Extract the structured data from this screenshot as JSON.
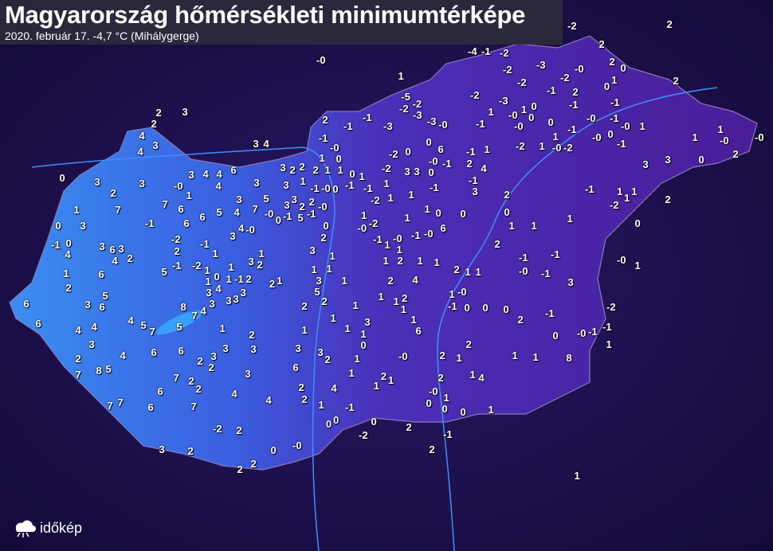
{
  "header": {
    "title": "Magyarország hőmérsékleti minimumtérképe",
    "subtitle": "2020. február 17.  -4,7 °C (Mihálygerge)"
  },
  "logo": {
    "text": "időkép",
    "icon": "cloud-sun-icon"
  },
  "colors": {
    "background": "#1c1050",
    "west": "#2f7de8",
    "east": "#5a20a8",
    "label": "#ffffff"
  },
  "map_labels": [
    "2",
    "-2",
    "-0",
    "-4",
    "-1",
    "-2",
    "2",
    "2",
    "0",
    "-2",
    "-3",
    "-0",
    "-2",
    "-2",
    "1",
    "0",
    "1",
    "2",
    "-2",
    "-1",
    "2",
    "-5",
    "-2",
    "-2",
    "-3",
    "-3",
    "-0",
    "-3",
    "-1",
    "-1",
    "0",
    "1",
    "1",
    "-0",
    "0",
    "-1",
    "-0",
    "0",
    "-0",
    "-1",
    "-0",
    "1",
    "0",
    "-1",
    "-0",
    "-1",
    "1",
    "1",
    "-0",
    "-2",
    "3",
    "2",
    "2",
    "2",
    "-1",
    "-1",
    "-3",
    "-1",
    "-0",
    "0",
    "0",
    "6",
    "0",
    "-2",
    "-1",
    "1",
    "-2",
    "1",
    "1",
    "-0",
    "-0",
    "2",
    "0",
    "3",
    "3",
    "4",
    "3",
    "4",
    "3",
    "4",
    "1",
    "1",
    "2",
    "2",
    "2",
    "3",
    "1",
    "0",
    "1",
    "-2",
    "3",
    "3",
    "0",
    "-0",
    "-1",
    "2",
    "4",
    "0",
    "3",
    "3",
    "3",
    "4",
    "4",
    "6",
    "3",
    "4",
    "-0",
    "1",
    "3",
    "1",
    "-1",
    "-0",
    "0",
    "-1",
    "-1",
    "1",
    "-1",
    "-1",
    "3",
    "2",
    "-1",
    "1",
    "1",
    "1",
    "-2",
    "2",
    "2",
    "7",
    "7",
    "6",
    "3",
    "5",
    "7",
    "4",
    "5",
    "6",
    "6",
    "-1",
    "3",
    "3",
    "2",
    "5",
    "2",
    "-0",
    "-1",
    "-0",
    "0",
    "-1",
    "-2",
    "1",
    "1",
    "1",
    "0",
    "0",
    "0",
    "1",
    "1",
    "1",
    "0",
    "1",
    "0",
    "3",
    "1",
    "-2",
    "1",
    "3",
    "4",
    "-0",
    "2",
    "0",
    "-0",
    "-1",
    "-0",
    "-1",
    "-0",
    "6",
    "-2",
    "-1",
    "0",
    "4",
    "3",
    "6",
    "3",
    "2",
    "4",
    "2",
    "-1",
    "1",
    "3",
    "1",
    "1",
    "1",
    "2",
    "1",
    "2",
    "1",
    "1",
    "-1",
    "-1",
    "-0",
    "1",
    "1",
    "6",
    "5",
    "-1",
    "-2",
    "1",
    "0",
    "1",
    "3",
    "1",
    "2",
    "1",
    "1",
    "2",
    "1",
    "1",
    "-0",
    "-1",
    "3",
    "2",
    "1",
    "1",
    "-1",
    "2",
    "2",
    "1",
    "3",
    "1",
    "2",
    "4",
    "3",
    "3",
    "4",
    "3",
    "5",
    "2",
    "1",
    "1",
    "2",
    "1",
    "-0",
    "6",
    "3",
    "6",
    "5",
    "8",
    "7",
    "4",
    "3",
    "3",
    "2",
    "1",
    "1",
    "-1",
    "0",
    "0",
    "0",
    "-1",
    "-2",
    "6",
    "4",
    "4",
    "4",
    "5",
    "7",
    "5",
    "1",
    "1",
    "1",
    "3",
    "1",
    "1",
    "2",
    "1",
    "0",
    "-1",
    "-1",
    "-0",
    "1",
    "6",
    "3",
    "4",
    "6",
    "6",
    "3",
    "2",
    "3",
    "3",
    "0",
    "2",
    "3",
    "2",
    "1",
    "-0",
    "2",
    "1",
    "1",
    "1",
    "8",
    "2",
    "2",
    "3",
    "2",
    "6",
    "7",
    "8",
    "5",
    "3",
    "1",
    "2",
    "1",
    "2",
    "1",
    "4",
    "7",
    "2",
    "2",
    "2",
    "4",
    "1",
    "6",
    "4",
    "4",
    "2",
    "1",
    "-0",
    "1",
    "0",
    "0",
    "0",
    "1",
    "7",
    "7",
    "6",
    "7",
    "-1",
    "0",
    "0",
    "0",
    "-2",
    "2",
    "-2",
    "2",
    "-1",
    "-0",
    "2",
    "0",
    "3",
    "2",
    "2",
    "2",
    "1"
  ]
}
